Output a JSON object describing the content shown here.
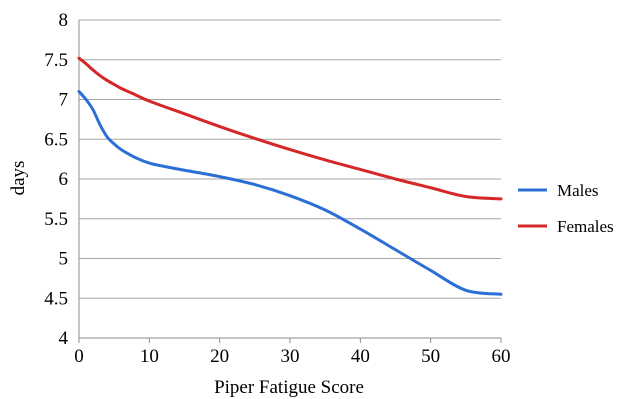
{
  "chart_data": {
    "type": "line",
    "title": "",
    "xlabel": "Piper Fatigue Score",
    "ylabel": "days",
    "xlim": [
      0,
      60
    ],
    "ylim": [
      4,
      8
    ],
    "x_ticks": [
      "0",
      "10",
      "20",
      "30",
      "40",
      "50",
      "60"
    ],
    "y_ticks": [
      "4",
      "4.5",
      "5",
      "5.5",
      "6",
      "6.5",
      "7",
      "7.5",
      "8"
    ],
    "grid": true,
    "legend_position": "right",
    "series": [
      {
        "name": "Males",
        "color": "#2b6fd6",
        "x": [
          0,
          1,
          2,
          3,
          4,
          5,
          6,
          8,
          10,
          12,
          15,
          20,
          25,
          30,
          35,
          40,
          45,
          50,
          55,
          60
        ],
        "y": [
          7.1,
          7.0,
          6.87,
          6.68,
          6.53,
          6.44,
          6.37,
          6.27,
          6.2,
          6.16,
          6.11,
          6.03,
          5.93,
          5.79,
          5.61,
          5.37,
          5.11,
          4.85,
          4.6,
          4.55
        ]
      },
      {
        "name": "Females",
        "color": "#d62728",
        "x": [
          0,
          1,
          2,
          3,
          4,
          5,
          6,
          8,
          10,
          15,
          20,
          25,
          30,
          35,
          40,
          45,
          50,
          55,
          60
        ],
        "y": [
          7.52,
          7.45,
          7.37,
          7.3,
          7.24,
          7.19,
          7.14,
          7.06,
          6.98,
          6.82,
          6.66,
          6.51,
          6.37,
          6.24,
          6.12,
          6.0,
          5.89,
          5.78,
          5.75
        ]
      }
    ]
  }
}
